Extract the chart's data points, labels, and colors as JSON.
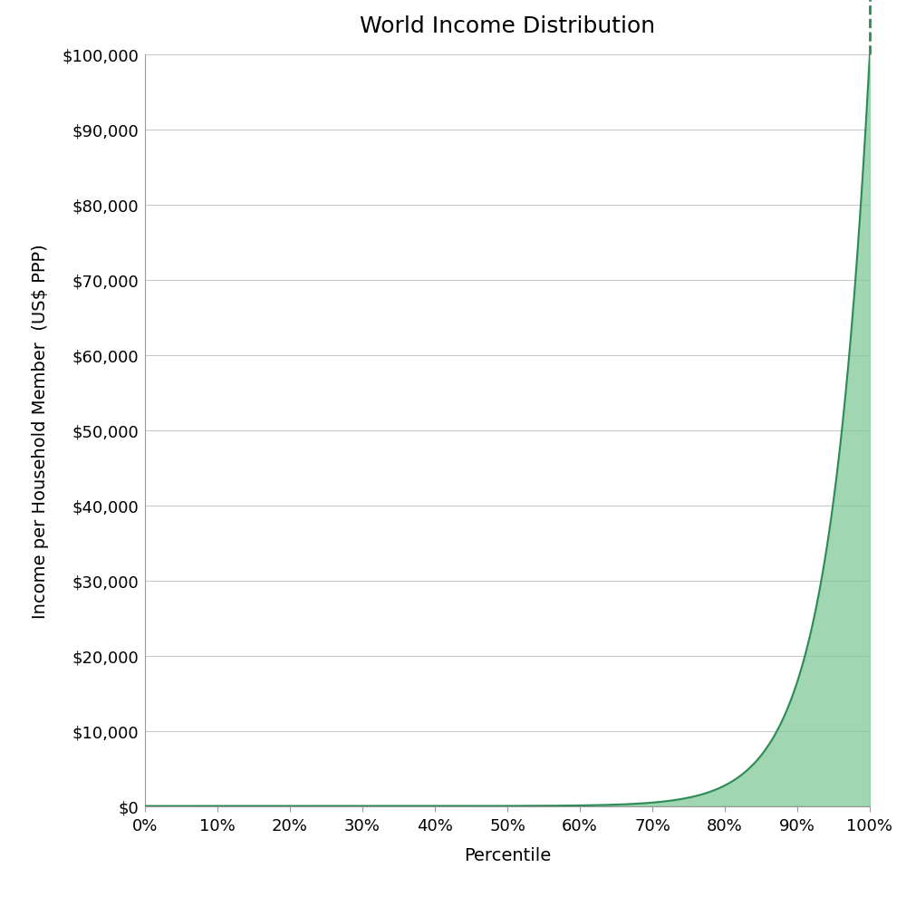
{
  "title": "World Income Distribution",
  "xlabel": "Percentile",
  "ylabel": "Income per Household Member  (US$ PPP)",
  "xlim": [
    0,
    100
  ],
  "ylim": [
    0,
    100000
  ],
  "fill_color": "#82C99A",
  "fill_alpha": 0.75,
  "line_color": "#2E8B57",
  "line_width": 1.5,
  "dashed_line_color": "#2E8B57",
  "background_color": "#FFFFFF",
  "grid_color": "#C8C8C8",
  "grid_linewidth": 0.8,
  "title_fontsize": 18,
  "label_fontsize": 14,
  "tick_fontsize": 13,
  "yticks": [
    0,
    10000,
    20000,
    30000,
    40000,
    50000,
    60000,
    70000,
    80000,
    90000,
    100000
  ],
  "xticks": [
    0,
    10,
    20,
    30,
    40,
    50,
    60,
    70,
    80,
    90,
    100
  ],
  "curve_exponent": 0.18,
  "figsize": [
    10.0,
    10.12
  ],
  "dpi": 100
}
